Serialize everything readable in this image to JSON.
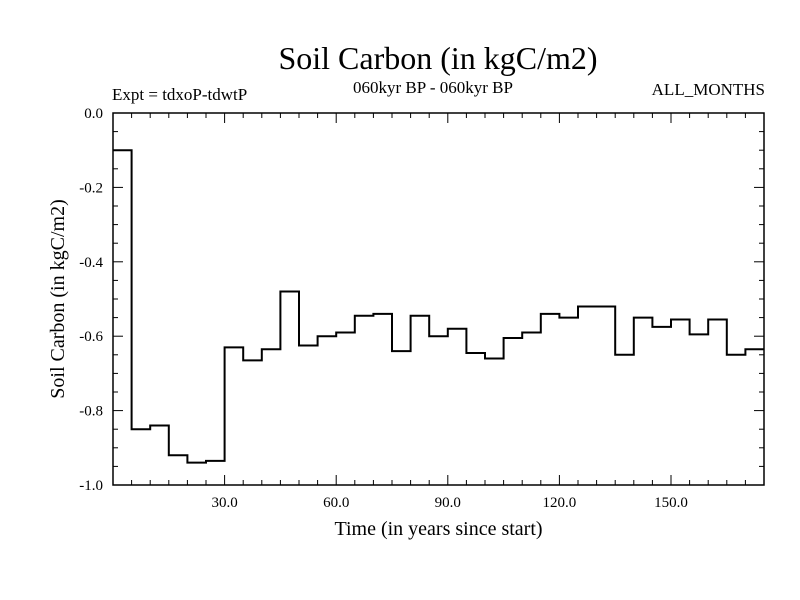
{
  "header": {
    "title": "Soil Carbon (in kgC/m2)",
    "expt": "Expt = tdxoP-tdwtP",
    "period": "060kyr BP - 060kyr BP",
    "months": "ALL_MONTHS"
  },
  "chart_data": {
    "type": "line",
    "title": "Soil Carbon (in kgC/m2)",
    "xlabel": "Time (in years since start)",
    "ylabel": "Soil Carbon (in kgC/m2)",
    "xlim": [
      0,
      175
    ],
    "ylim": [
      -1.0,
      0.0
    ],
    "xticks": [
      30,
      60,
      90,
      120,
      150
    ],
    "xtick_labels": [
      "30.0",
      "60.0",
      "90.0",
      "120.0",
      "150.0"
    ],
    "yticks": [
      0.0,
      -0.2,
      -0.4,
      -0.6,
      -0.8,
      -1.0
    ],
    "ytick_labels": [
      "0.0",
      "-0.2",
      "-0.4",
      "-0.6",
      "-0.8",
      "-1.0"
    ],
    "grid": false,
    "step": true,
    "color": "#000000",
    "series": [
      {
        "x": [
          0,
          5,
          10,
          15,
          20,
          25,
          30,
          35,
          40,
          45,
          50,
          55,
          60,
          65,
          70,
          75,
          80,
          85,
          90,
          95,
          100,
          105,
          110,
          115,
          120,
          125,
          130,
          135,
          140,
          145,
          150,
          155,
          160,
          165,
          170
        ],
        "values": [
          -0.1,
          -0.85,
          -0.84,
          -0.92,
          -0.94,
          -0.935,
          -0.63,
          -0.665,
          -0.635,
          -0.48,
          -0.625,
          -0.6,
          -0.59,
          -0.545,
          -0.54,
          -0.64,
          -0.545,
          -0.6,
          -0.58,
          -0.645,
          -0.66,
          -0.605,
          -0.59,
          -0.54,
          -0.55,
          -0.52,
          -0.52,
          -0.65,
          -0.55,
          -0.575,
          -0.555,
          -0.595,
          -0.555,
          -0.65,
          -0.635
        ]
      }
    ]
  }
}
